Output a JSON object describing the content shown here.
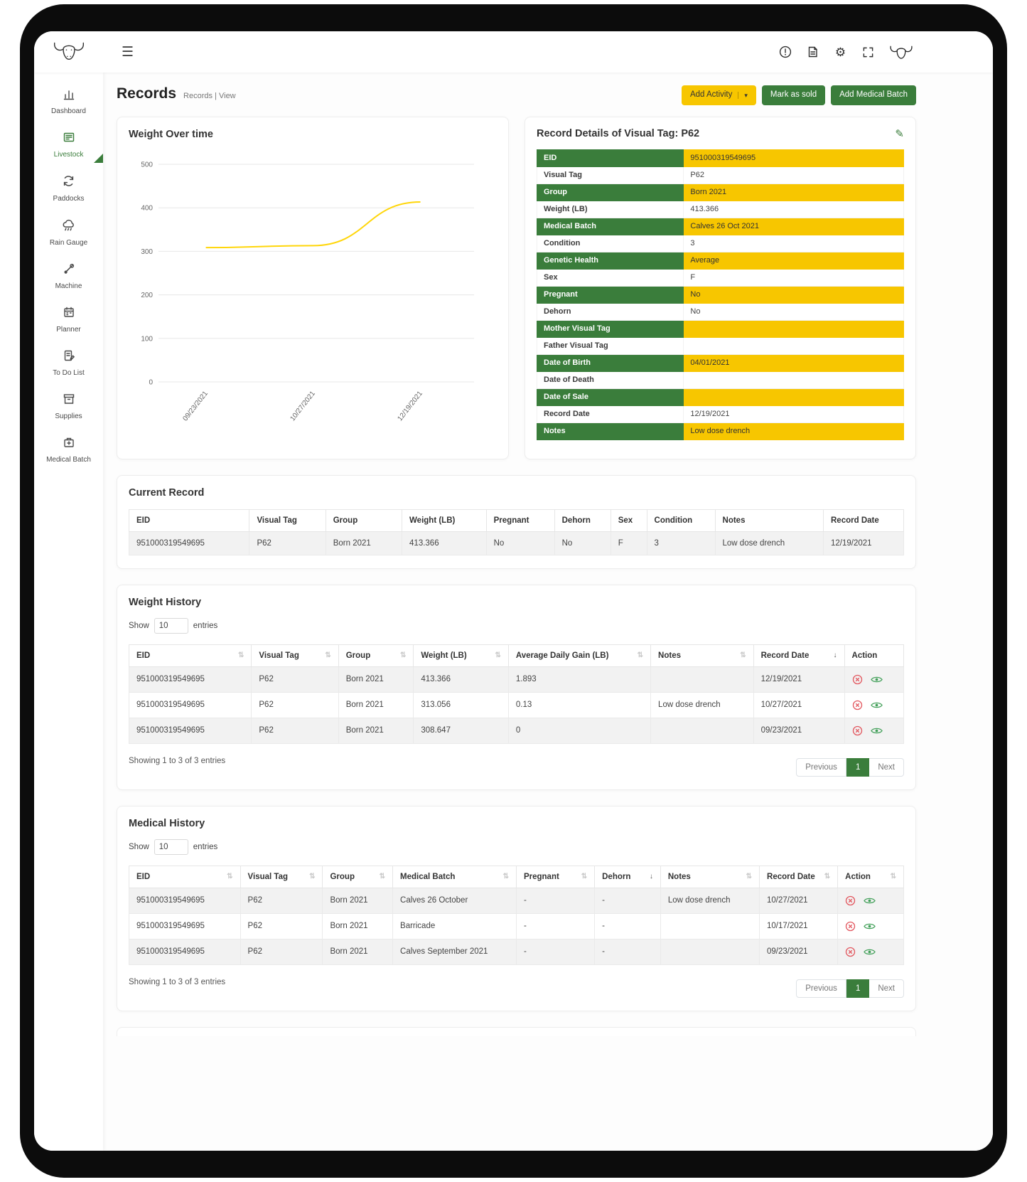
{
  "icons": {
    "hamburger": "☰",
    "gear": "⚙",
    "edit_pencil": "✎",
    "caret_down": "▾",
    "sort_both": "⇅",
    "sort_desc": "↓"
  },
  "sidebar": {
    "items": [
      {
        "label": "Dashboard",
        "active": false
      },
      {
        "label": "Livestock",
        "active": true
      },
      {
        "label": "Paddocks",
        "active": false
      },
      {
        "label": "Rain Gauge",
        "active": false
      },
      {
        "label": "Machine",
        "active": false
      },
      {
        "label": "Planner",
        "active": false
      },
      {
        "label": "To Do List",
        "active": false
      },
      {
        "label": "Supplies",
        "active": false
      },
      {
        "label": "Medical Batch",
        "active": false
      }
    ]
  },
  "header": {
    "title": "Records",
    "breadcrumb": {
      "section": "Records",
      "separator": "|",
      "current": "View"
    },
    "buttons": {
      "add_activity": "Add Activity",
      "mark_as_sold": "Mark as sold",
      "add_medical_batch": "Add Medical Batch"
    }
  },
  "chart_data": {
    "type": "line",
    "title": "Weight Over time",
    "x": [
      "09/23/2021",
      "10/27/2021",
      "12/19/2021"
    ],
    "series": [
      {
        "name": "Weight (LB)",
        "values": [
          308.647,
          313.056,
          413.366
        ]
      }
    ],
    "ylim": [
      0,
      500
    ],
    "yticks": [
      0,
      100,
      200,
      300,
      400,
      500
    ],
    "grid": true,
    "legend_position": "none",
    "line_color": "#ffd60a"
  },
  "record_details": {
    "title": "Record Details of Visual Tag: P62",
    "rows": [
      {
        "label": "EID",
        "value": "951000319549695",
        "highlight": true
      },
      {
        "label": "Visual Tag",
        "value": "P62",
        "highlight": false
      },
      {
        "label": "Group",
        "value": "Born 2021",
        "highlight": true
      },
      {
        "label": "Weight (LB)",
        "value": "413.366",
        "highlight": false
      },
      {
        "label": "Medical Batch",
        "value": "Calves 26 Oct 2021",
        "highlight": true
      },
      {
        "label": "Condition",
        "value": "3",
        "highlight": false
      },
      {
        "label": "Genetic Health",
        "value": "Average",
        "highlight": true
      },
      {
        "label": "Sex",
        "value": "F",
        "highlight": false
      },
      {
        "label": "Pregnant",
        "value": "No",
        "highlight": true
      },
      {
        "label": "Dehorn",
        "value": "No",
        "highlight": false
      },
      {
        "label": "Mother Visual Tag",
        "value": "",
        "highlight": true
      },
      {
        "label": "Father Visual Tag",
        "value": "",
        "highlight": false
      },
      {
        "label": "Date of Birth",
        "value": "04/01/2021",
        "highlight": true
      },
      {
        "label": "Date of Death",
        "value": "",
        "highlight": false
      },
      {
        "label": "Date of Sale",
        "value": "",
        "highlight": true
      },
      {
        "label": "Record Date",
        "value": "12/19/2021",
        "highlight": false
      },
      {
        "label": "Notes",
        "value": "Low dose drench",
        "highlight": true
      }
    ]
  },
  "current_record": {
    "title": "Current Record",
    "headers": [
      "EID",
      "Visual Tag",
      "Group",
      "Weight (LB)",
      "Pregnant",
      "Dehorn",
      "Sex",
      "Condition",
      "Notes",
      "Record Date"
    ],
    "rows": [
      [
        "951000319549695",
        "P62",
        "Born 2021",
        "413.366",
        "No",
        "No",
        "F",
        "3",
        "Low dose drench",
        "12/19/2021"
      ]
    ]
  },
  "tables": {
    "show_label": "Show",
    "page_size": "10",
    "entries_label": "entries",
    "showing": "Showing 1 to 3 of 3 entries",
    "pagination": {
      "previous": "Previous",
      "page": "1",
      "next": "Next"
    }
  },
  "weight_history": {
    "title": "Weight History",
    "headers": [
      "EID",
      "Visual Tag",
      "Group",
      "Weight (LB)",
      "Average Daily Gain (LB)",
      "Notes",
      "Record Date",
      "Action"
    ],
    "rows": [
      [
        "951000319549695",
        "P62",
        "Born 2021",
        "413.366",
        "1.893",
        "",
        "12/19/2021"
      ],
      [
        "951000319549695",
        "P62",
        "Born 2021",
        "313.056",
        "0.13",
        "Low dose drench",
        "10/27/2021"
      ],
      [
        "951000319549695",
        "P62",
        "Born 2021",
        "308.647",
        "0",
        "",
        "09/23/2021"
      ]
    ]
  },
  "medical_history": {
    "title": "Medical History",
    "headers": [
      "EID",
      "Visual Tag",
      "Group",
      "Medical Batch",
      "Pregnant",
      "Dehorn",
      "Notes",
      "Record Date",
      "Action"
    ],
    "rows": [
      [
        "951000319549695",
        "P62",
        "Born 2021",
        "Calves 26 October",
        "-",
        "-",
        "Low dose drench",
        "10/27/2021"
      ],
      [
        "951000319549695",
        "P62",
        "Born 2021",
        "Barricade",
        "-",
        "-",
        "",
        "10/17/2021"
      ],
      [
        "951000319549695",
        "P62",
        "Born 2021",
        "Calves September 2021",
        "-",
        "-",
        "",
        "09/23/2021"
      ]
    ]
  }
}
